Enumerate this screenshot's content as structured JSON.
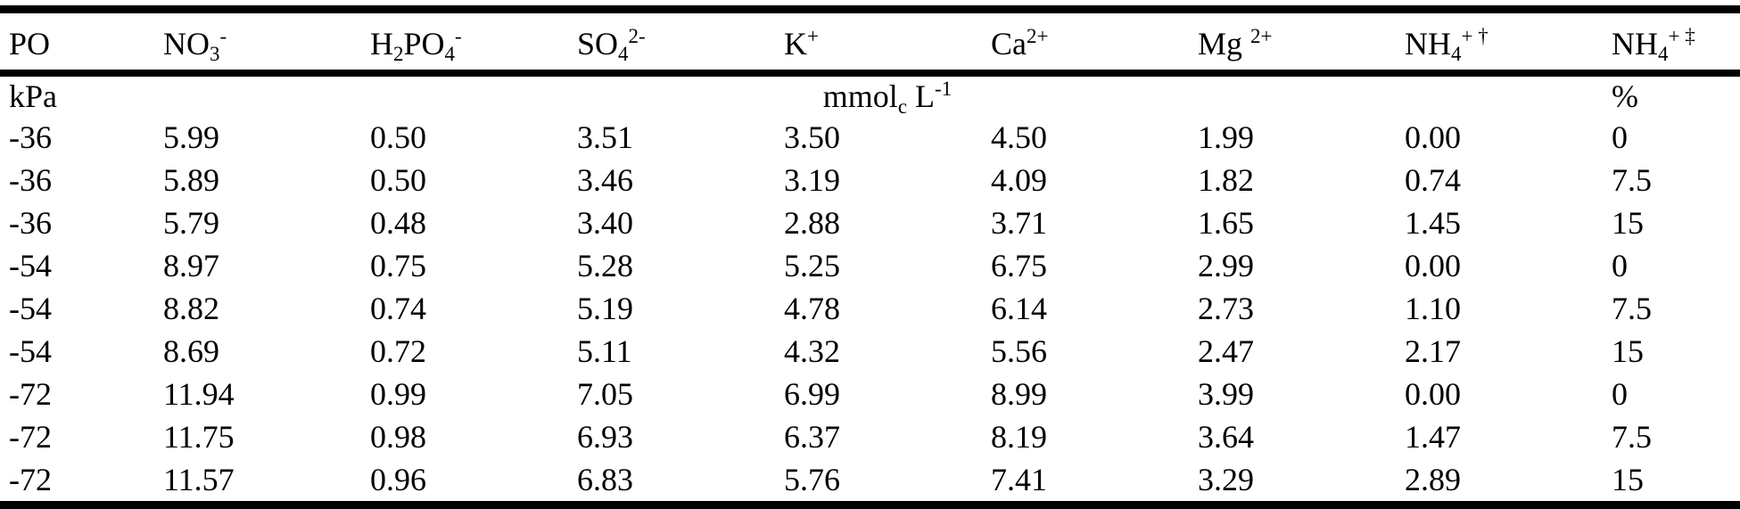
{
  "page": {
    "background_color": "#ffffff",
    "text_color": "#000000",
    "rule_color": "#000000"
  },
  "table": {
    "headers": [
      {
        "main": "PO"
      },
      {
        "main": "NO",
        "sub": "3",
        "sup": "-"
      },
      {
        "main": "H",
        "sub": "2",
        "main2": "PO",
        "sub2": "4",
        "sup": "-"
      },
      {
        "main": "SO",
        "sub": "4",
        "sup": "2-"
      },
      {
        "main": "K",
        "sup": "+"
      },
      {
        "main": "Ca",
        "sup": "2+"
      },
      {
        "main": "Mg ",
        "sup": "2+"
      },
      {
        "main": "NH",
        "sub": "4",
        "sup": "+ †"
      },
      {
        "main": "NH",
        "sub": "4",
        "sup": "+ ‡"
      }
    ],
    "unit_row": {
      "col1": "kPa",
      "span_unit": {
        "main": "mmol",
        "sub": "c",
        "main2": " L",
        "sup": "-1"
      },
      "col9": "%"
    },
    "rows": [
      [
        "-36",
        "5.99",
        "0.50",
        "3.51",
        "3.50",
        "4.50",
        "1.99",
        "0.00",
        "0"
      ],
      [
        "-36",
        "5.89",
        "0.50",
        "3.46",
        "3.19",
        "4.09",
        "1.82",
        "0.74",
        "7.5"
      ],
      [
        "-36",
        "5.79",
        "0.48",
        "3.40",
        "2.88",
        "3.71",
        "1.65",
        "1.45",
        "15"
      ],
      [
        "-54",
        "8.97",
        "0.75",
        "5.28",
        "5.25",
        "6.75",
        "2.99",
        "0.00",
        "0"
      ],
      [
        "-54",
        "8.82",
        "0.74",
        "5.19",
        "4.78",
        "6.14",
        "2.73",
        "1.10",
        "7.5"
      ],
      [
        "-54",
        "8.69",
        "0.72",
        "5.11",
        "4.32",
        "5.56",
        "2.47",
        "2.17",
        "15"
      ],
      [
        "-72",
        "11.94",
        "0.99",
        "7.05",
        "6.99",
        "8.99",
        "3.99",
        "0.00",
        "0"
      ],
      [
        "-72",
        "11.75",
        "0.98",
        "6.93",
        "6.37",
        "8.19",
        "3.64",
        "1.47",
        "7.5"
      ],
      [
        "-72",
        "11.57",
        "0.96",
        "6.83",
        "5.76",
        "7.41",
        "3.29",
        "2.89",
        "15"
      ]
    ]
  },
  "artifacts": {
    "footnote_marker": "†"
  }
}
